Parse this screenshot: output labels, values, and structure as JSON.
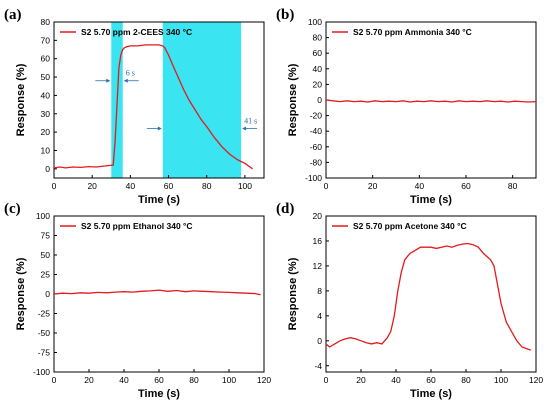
{
  "chart_data": [
    {
      "type": "line",
      "panel_label": "(a)",
      "xlabel": "Time (s)",
      "ylabel": "Response (%)",
      "xlim": [
        0,
        110
      ],
      "ylim": [
        -5,
        80
      ],
      "xticks": [
        0,
        20,
        40,
        60,
        80,
        100
      ],
      "yticks": [
        0,
        10,
        20,
        30,
        40,
        50,
        60,
        70,
        80
      ],
      "legend": "top-left",
      "series": [
        {
          "name": "S2  5.70 ppm  2-CEES  340 °C",
          "color": "#e41a1c",
          "x": [
            0,
            3,
            6,
            10,
            14,
            18,
            22,
            26,
            29,
            31,
            32,
            33,
            34,
            35,
            36,
            37,
            38,
            40,
            44,
            48,
            52,
            55,
            57,
            58,
            60,
            62,
            65,
            68,
            71,
            74,
            77,
            80,
            84,
            88,
            92,
            96,
            98,
            100,
            102,
            104
          ],
          "y": [
            0.5,
            1,
            0.5,
            1,
            0.8,
            1.2,
            1,
            1.5,
            1.8,
            2,
            15,
            35,
            55,
            62,
            65,
            66,
            66.5,
            67,
            67,
            67.5,
            67.5,
            67.5,
            67,
            66,
            62,
            57,
            50,
            43,
            37,
            32,
            27,
            23,
            17,
            12,
            8,
            5,
            4,
            3,
            1.5,
            0
          ]
        }
      ],
      "shaded_regions": [
        [
          30,
          36
        ],
        [
          57,
          98
        ]
      ],
      "annotations": [
        {
          "text": "6 s",
          "x": 36,
          "y": 48,
          "from_x": 30,
          "to_x": 36
        },
        {
          "text": "41 s",
          "x": 98,
          "y": 22,
          "from_x": 57,
          "to_x": 98
        }
      ]
    },
    {
      "type": "line",
      "panel_label": "(b)",
      "xlabel": "Time (s)",
      "ylabel": "Response (%)",
      "xlim": [
        0,
        90
      ],
      "ylim": [
        -100,
        100
      ],
      "xticks": [
        0,
        20,
        40,
        60,
        80
      ],
      "yticks": [
        -100,
        -80,
        -60,
        -40,
        -20,
        0,
        20,
        40,
        60,
        80,
        100
      ],
      "legend": "top-left",
      "series": [
        {
          "name": "S2  5.70 ppm  Ammonia  340 °C",
          "color": "#e41a1c",
          "x": [
            0,
            3,
            6,
            9,
            12,
            15,
            18,
            21,
            24,
            27,
            30,
            33,
            36,
            39,
            42,
            45,
            48,
            51,
            54,
            57,
            60,
            63,
            66,
            69,
            72,
            75,
            78,
            81,
            84,
            87,
            90
          ],
          "y": [
            0,
            -1,
            -2,
            -1,
            -2,
            -1.5,
            -2.5,
            -1,
            -2,
            -1.5,
            -2,
            -1,
            -2.5,
            -1.5,
            -2,
            -1,
            -2,
            -1.5,
            -2.5,
            -1,
            -2,
            -1.5,
            -2,
            -1,
            -2,
            -1.5,
            -2.5,
            -1.5,
            -2,
            -2.5,
            -2
          ]
        }
      ]
    },
    {
      "type": "line",
      "panel_label": "(c)",
      "xlabel": "Time (s)",
      "ylabel": "Response (%)",
      "xlim": [
        0,
        120
      ],
      "ylim": [
        -100,
        100
      ],
      "xticks": [
        0,
        20,
        40,
        60,
        80,
        100,
        120
      ],
      "yticks": [
        -100,
        -75,
        -50,
        -25,
        0,
        25,
        50,
        75,
        100
      ],
      "legend": "top-left",
      "series": [
        {
          "name": "S2  5.70 ppm  Ethanol  340 °C",
          "color": "#e41a1c",
          "x": [
            0,
            5,
            10,
            15,
            20,
            25,
            30,
            35,
            40,
            45,
            50,
            55,
            60,
            65,
            70,
            75,
            80,
            85,
            90,
            95,
            100,
            105,
            110,
            115,
            118
          ],
          "y": [
            0,
            1,
            0.5,
            1.5,
            1,
            2,
            1.5,
            2.5,
            3,
            2.5,
            3.5,
            4,
            5,
            3.5,
            4.5,
            3,
            4,
            3.5,
            3,
            2.5,
            2,
            1.5,
            1,
            0.5,
            -1
          ]
        }
      ]
    },
    {
      "type": "line",
      "panel_label": "(d)",
      "xlabel": "Time (s)",
      "ylabel": "Response (%)",
      "xlim": [
        0,
        120
      ],
      "ylim": [
        -5,
        20
      ],
      "xticks": [
        0,
        20,
        40,
        60,
        80,
        100,
        120
      ],
      "yticks": [
        -4,
        0,
        4,
        8,
        12,
        16,
        20
      ],
      "legend": "top-left",
      "series": [
        {
          "name": "S2  5.70 ppm  Acetone  340 °C",
          "color": "#e41a1c",
          "x": [
            0,
            2,
            5,
            8,
            11,
            14,
            17,
            20,
            23,
            26,
            29,
            32,
            35,
            37,
            39,
            41,
            43,
            45,
            48,
            51,
            54,
            57,
            60,
            63,
            66,
            69,
            72,
            75,
            78,
            81,
            84,
            87,
            90,
            92,
            94,
            96,
            98,
            100,
            103,
            106,
            109,
            112,
            115,
            117
          ],
          "y": [
            -0.5,
            -1,
            -0.5,
            0,
            0.3,
            0.5,
            0.3,
            0,
            -0.3,
            -0.5,
            -0.3,
            -0.5,
            0.5,
            1.5,
            4,
            8,
            11,
            13,
            14,
            14.5,
            15,
            15,
            15,
            14.8,
            15,
            15.2,
            15,
            15.3,
            15.5,
            15.6,
            15.4,
            15,
            14,
            13.5,
            13,
            12,
            9,
            6,
            3,
            1.5,
            0,
            -1,
            -1.3,
            -1.5
          ]
        }
      ]
    }
  ]
}
